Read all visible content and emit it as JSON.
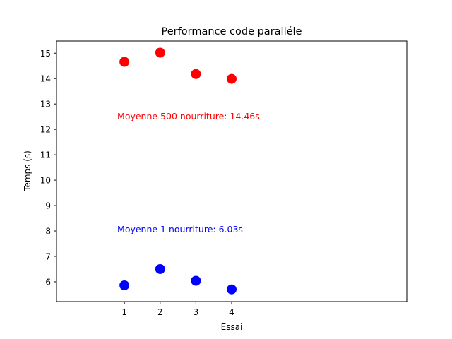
{
  "chart_data": {
    "type": "scatter",
    "title": "Performance code paralléle",
    "xlabel": "Essai",
    "ylabel": "Temps (s)",
    "xlim": [
      -0.9,
      8.9
    ],
    "ylim": [
      5.22,
      15.48
    ],
    "x_ticks": [
      1,
      2,
      3,
      4
    ],
    "y_ticks": [
      6,
      7,
      8,
      9,
      10,
      11,
      12,
      13,
      14,
      15
    ],
    "grid": false,
    "series": [
      {
        "color": "#ff0000",
        "x": [
          1,
          2,
          3,
          4
        ],
        "y": [
          14.66,
          15.02,
          14.18,
          13.99
        ]
      },
      {
        "color": "#0000ff",
        "x": [
          1,
          2,
          3,
          4
        ],
        "y": [
          5.86,
          6.5,
          6.04,
          5.7
        ]
      }
    ],
    "annotations": [
      {
        "text": "Moyenne 500 nourriture: 14.46s",
        "x": 0.8,
        "y": 12.4,
        "color": "#ff0000"
      },
      {
        "text": "Moyenne 1 nourriture: 6.03s",
        "x": 0.8,
        "y": 7.95,
        "color": "#0000ff"
      }
    ]
  }
}
